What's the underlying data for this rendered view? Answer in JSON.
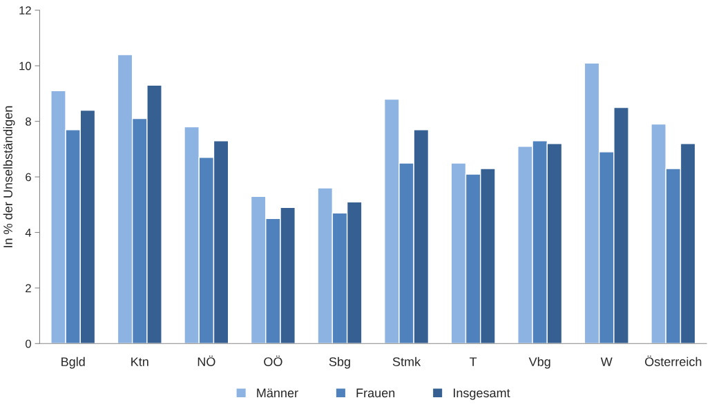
{
  "chart_data": {
    "type": "bar",
    "ylabel": "In % der Unselbständigen",
    "categories": [
      "Bgld",
      "Ktn",
      "NÖ",
      "OÖ",
      "Sbg",
      "Stmk",
      "T",
      "Vbg",
      "W",
      "Österreich"
    ],
    "series": [
      {
        "name": "Männer",
        "color": "#8db3e2",
        "values": [
          9.1,
          10.4,
          7.8,
          5.3,
          5.6,
          8.8,
          6.5,
          7.1,
          10.1,
          7.9
        ]
      },
      {
        "name": "Frauen",
        "color": "#4f81bd",
        "values": [
          7.7,
          8.1,
          6.7,
          4.5,
          4.7,
          6.5,
          6.1,
          7.3,
          6.9,
          6.3
        ]
      },
      {
        "name": "Insgesamt",
        "color": "#366092",
        "values": [
          8.4,
          9.3,
          7.3,
          4.9,
          5.1,
          7.7,
          6.3,
          7.2,
          8.5,
          7.2
        ]
      }
    ],
    "ylim": [
      0,
      12
    ],
    "yticks": [
      0,
      2,
      4,
      6,
      8,
      10,
      12
    ],
    "grid": false,
    "legend": "bottom"
  }
}
